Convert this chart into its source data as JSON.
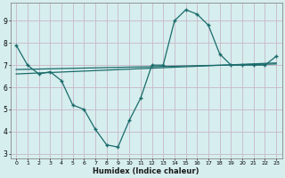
{
  "x": [
    0,
    1,
    2,
    3,
    4,
    5,
    6,
    7,
    8,
    9,
    10,
    11,
    12,
    13,
    14,
    15,
    16,
    17,
    18,
    19,
    20,
    21,
    22,
    23
  ],
  "y_curve": [
    7.9,
    7.0,
    6.6,
    6.7,
    6.3,
    5.2,
    5.0,
    4.1,
    3.4,
    3.3,
    4.5,
    5.5,
    7.0,
    7.0,
    9.0,
    9.5,
    9.3,
    8.8,
    7.5,
    7.0,
    7.0,
    7.0,
    7.0,
    7.4
  ],
  "line1_x": [
    0,
    23
  ],
  "line1_y": [
    6.6,
    7.1
  ],
  "line2_x": [
    0,
    23
  ],
  "line2_y": [
    6.8,
    7.05
  ],
  "xlabel": "Humidex (Indice chaleur)",
  "ylim": [
    2.8,
    9.8
  ],
  "xlim": [
    -0.5,
    23.5
  ],
  "yticks": [
    3,
    4,
    5,
    6,
    7,
    8,
    9
  ],
  "xticks": [
    0,
    1,
    2,
    3,
    4,
    5,
    6,
    7,
    8,
    9,
    10,
    11,
    12,
    13,
    14,
    15,
    16,
    17,
    18,
    19,
    20,
    21,
    22,
    23
  ],
  "bg_color": "#d6eeee",
  "line_color": "#1a6b6b",
  "grid_color": "#c8b8c8",
  "font_color": "#1a1a1a"
}
